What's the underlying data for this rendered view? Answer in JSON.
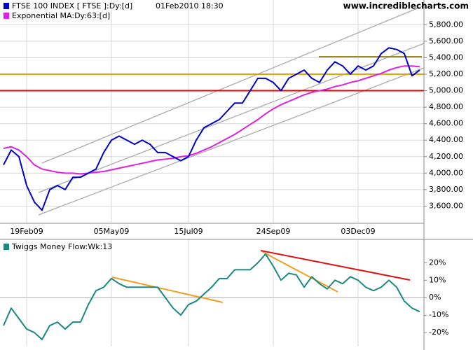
{
  "chart_data": [
    {
      "type": "line",
      "date_label": "01Feb2010 18:30",
      "watermark": "www.incrediblecharts.com",
      "categories": [
        null,
        null,
        null,
        "19Feb09",
        null,
        null,
        null,
        null,
        null,
        null,
        null,
        null,
        null,
        null,
        "05May09",
        null,
        null,
        null,
        null,
        null,
        null,
        null,
        null,
        null,
        "15Jul09",
        null,
        null,
        null,
        null,
        null,
        null,
        null,
        null,
        null,
        null,
        "24Sep09",
        null,
        null,
        null,
        null,
        null,
        null,
        null,
        null,
        null,
        null,
        "03Dec09",
        null,
        null,
        null,
        null,
        null,
        null,
        null,
        null
      ],
      "series": [
        {
          "name": "FTSE 100 INDEX [ FTSE ]:Dy:[d]",
          "color": "#0000cc",
          "values": [
            4100,
            4280,
            4200,
            3850,
            3650,
            3550,
            3800,
            3850,
            3800,
            3950,
            3950,
            4000,
            4050,
            4250,
            4400,
            4450,
            4400,
            4350,
            4400,
            4350,
            4250,
            4250,
            4200,
            4150,
            4200,
            4400,
            4550,
            4600,
            4650,
            4750,
            4850,
            4850,
            5000,
            5150,
            5150,
            5100,
            5000,
            5150,
            5200,
            5250,
            5150,
            5100,
            5250,
            5350,
            5300,
            5200,
            5300,
            5250,
            5300,
            5450,
            5520,
            5500,
            5450,
            5180,
            5250
          ]
        },
        {
          "name": "Exponential MA:Dy:63:[d]",
          "color": "#e020e0",
          "values": [
            4300,
            4320,
            4280,
            4200,
            4100,
            4050,
            4030,
            4010,
            4000,
            4000,
            3990,
            4000,
            4010,
            4020,
            4040,
            4060,
            4080,
            4100,
            4120,
            4140,
            4160,
            4170,
            4180,
            4200,
            4210,
            4240,
            4280,
            4320,
            4370,
            4420,
            4470,
            4530,
            4590,
            4650,
            4720,
            4780,
            4830,
            4870,
            4910,
            4950,
            4980,
            5000,
            5020,
            5050,
            5070,
            5100,
            5120,
            5150,
            5180,
            5210,
            5250,
            5280,
            5300,
            5300,
            5290
          ]
        }
      ],
      "reference_lines": [
        {
          "value": 5200,
          "color": "#e8a000"
        },
        {
          "value": 5000,
          "color": "#ee0000"
        }
      ],
      "ylim": [
        3400,
        6100
      ],
      "yticks": [
        {
          "value": 3600,
          "label": "3,600.00"
        },
        {
          "value": 3800,
          "label": "3,800.00"
        },
        {
          "value": 4000,
          "label": "4,000.00"
        },
        {
          "value": 4200,
          "label": "4,200.00"
        },
        {
          "value": 4400,
          "label": "4,400.00"
        },
        {
          "value": 4600,
          "label": "4,600.00"
        },
        {
          "value": 4800,
          "label": "4,800.00"
        },
        {
          "value": 5000,
          "label": "5,000.00"
        },
        {
          "value": 5200,
          "label": "5,200.00"
        },
        {
          "value": 5400,
          "label": "5,400.00"
        },
        {
          "value": 5600,
          "label": "5,600.00"
        },
        {
          "value": 5800,
          "label": "5,800.00"
        }
      ],
      "grid": true
    },
    {
      "type": "line",
      "series": [
        {
          "name": "Twiggs Money Flow:Wk:13",
          "color": "#1a8a80",
          "values": [
            -16,
            -6,
            -12,
            -18,
            -20,
            -24,
            -16,
            -14,
            -18,
            -14,
            -14,
            -4,
            4,
            6,
            11,
            8,
            6,
            6,
            6,
            6,
            6,
            0,
            -6,
            -10,
            -4,
            -2,
            2,
            6,
            11,
            11,
            16,
            16,
            16,
            20,
            25,
            18,
            10,
            14,
            13,
            6,
            12,
            8,
            5,
            10,
            8,
            12,
            10,
            6,
            4,
            6,
            10,
            6,
            -2,
            -6,
            -8
          ]
        }
      ],
      "ylim": [
        -28,
        33
      ],
      "yticks": [
        {
          "value": -20,
          "label": "-20%"
        },
        {
          "value": -10,
          "label": "-10%"
        },
        {
          "value": 0,
          "label": "0%"
        },
        {
          "value": 10,
          "label": "10%"
        },
        {
          "value": 20,
          "label": "20%"
        }
      ]
    }
  ]
}
